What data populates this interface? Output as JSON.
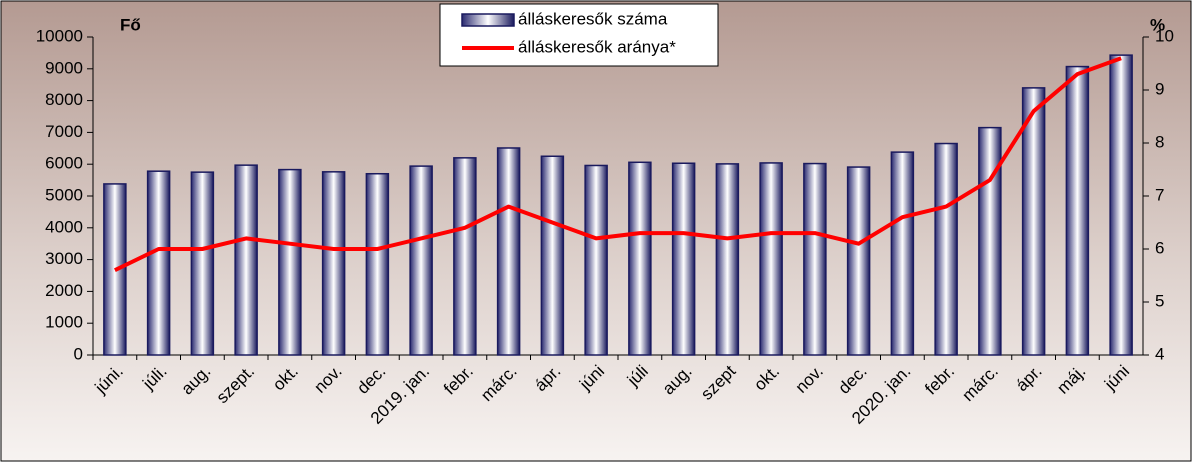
{
  "chart_data": {
    "type": "bar_line",
    "y_label": "Fő",
    "y2_label": "%",
    "categories": [
      "júni.",
      "júli.",
      "aug.",
      "szept.",
      "okt.",
      "nov.",
      "dec.",
      "2019. jan.",
      "febr.",
      "márc.",
      "ápr.",
      "júni",
      "júli",
      "aug.",
      "szept",
      "okt.",
      "nov.",
      "dec.",
      "2020. jan.",
      "febr.",
      "márc.",
      "ápr.",
      "máj.",
      "júni"
    ],
    "series": [
      {
        "name": "álláskeresők száma",
        "type": "bar",
        "color": "#1a1a5e",
        "values": [
          5380,
          5780,
          5750,
          5970,
          5830,
          5760,
          5700,
          5940,
          6200,
          6510,
          6250,
          5960,
          6060,
          6030,
          6010,
          6040,
          6020,
          5910,
          6380,
          6650,
          7150,
          8400,
          9070,
          9430
        ]
      },
      {
        "name": "álláskeresők aránya*",
        "type": "line",
        "axis": "y2",
        "color": "#ff0000",
        "values": [
          5.6,
          6.0,
          6.0,
          6.2,
          6.1,
          6.0,
          6.0,
          6.2,
          6.4,
          6.8,
          6.5,
          6.2,
          6.3,
          6.3,
          6.2,
          6.3,
          6.3,
          6.1,
          6.6,
          6.8,
          7.3,
          8.6,
          9.3,
          9.6
        ]
      }
    ],
    "ylim": [
      0,
      10000
    ],
    "yticks": [
      0,
      1000,
      2000,
      3000,
      4000,
      5000,
      6000,
      7000,
      8000,
      9000,
      10000
    ],
    "y2lim": [
      4,
      10
    ],
    "y2ticks": [
      4,
      5,
      6,
      7,
      8,
      9,
      10
    ],
    "legend": "top"
  }
}
